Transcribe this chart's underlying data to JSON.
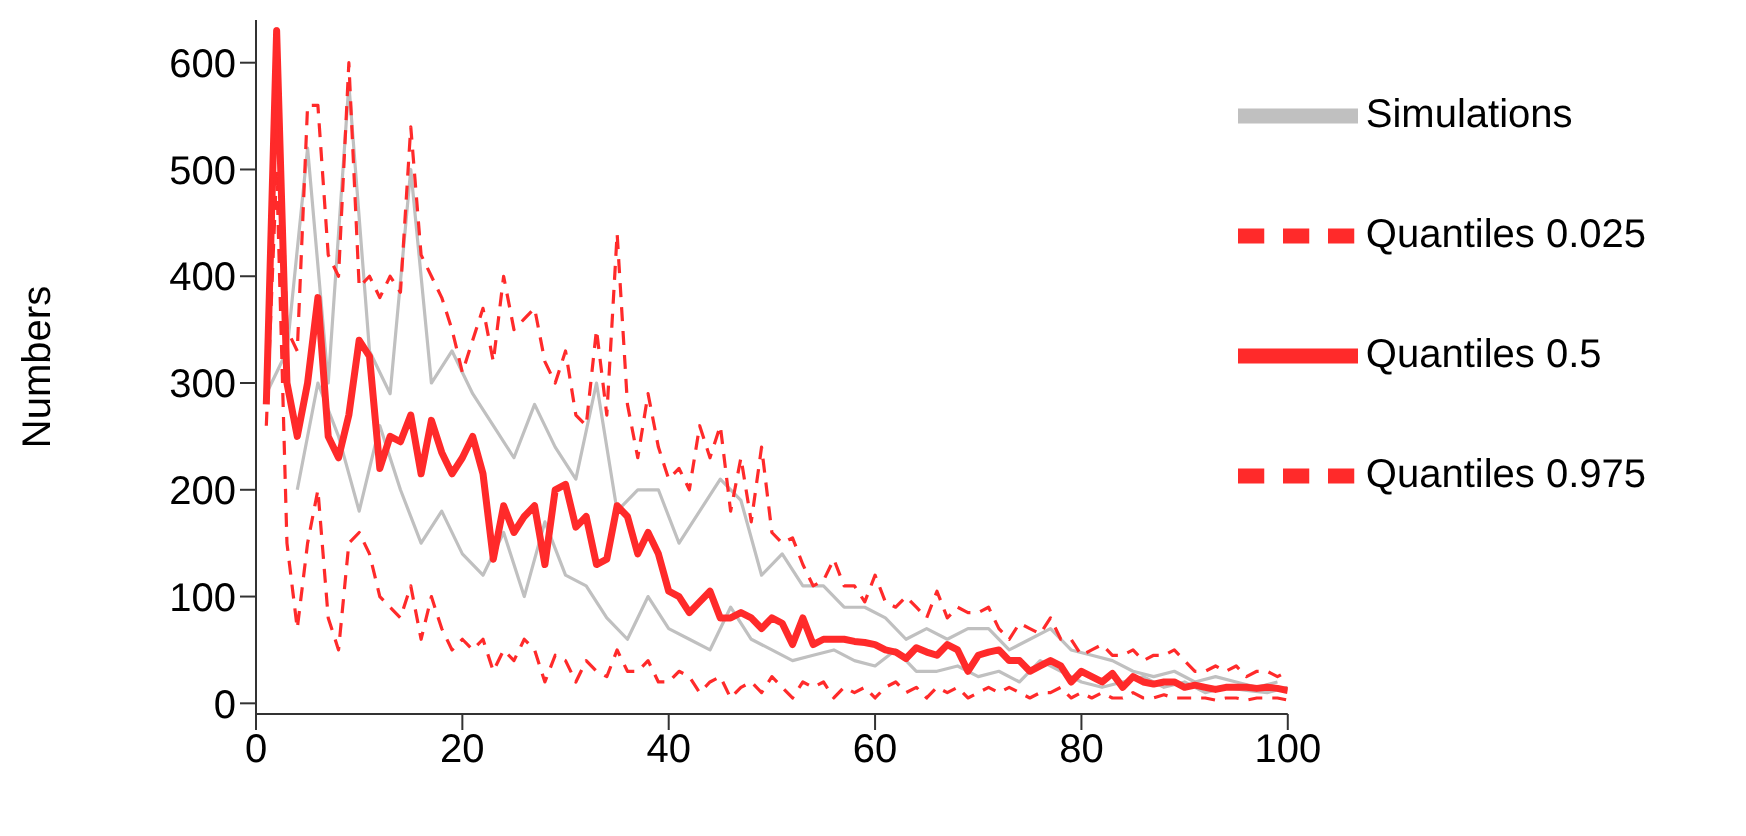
{
  "chart_data": {
    "type": "line",
    "ylabel": "Numbers",
    "xlim": [
      0,
      100
    ],
    "xticks": [
      0,
      20,
      40,
      60,
      80,
      100
    ],
    "ylim": [
      -10,
      640
    ],
    "yticks": [
      0,
      100,
      200,
      300,
      400,
      500,
      600
    ],
    "grid": false,
    "legend": "top right",
    "marker": "none",
    "x": [
      1,
      2,
      3,
      4,
      5,
      6,
      7,
      8,
      9,
      10,
      11,
      12,
      13,
      14,
      15,
      16,
      17,
      18,
      19,
      20,
      21,
      22,
      23,
      24,
      25,
      26,
      27,
      28,
      29,
      30,
      31,
      32,
      33,
      34,
      35,
      36,
      37,
      38,
      39,
      40,
      41,
      42,
      43,
      44,
      45,
      46,
      47,
      48,
      49,
      50,
      51,
      52,
      53,
      54,
      55,
      56,
      57,
      58,
      59,
      60,
      61,
      62,
      63,
      64,
      65,
      66,
      67,
      68,
      69,
      70,
      71,
      72,
      73,
      74,
      75,
      76,
      77,
      78,
      79,
      80,
      81,
      82,
      83,
      84,
      85,
      86,
      87,
      88,
      89,
      90,
      91,
      92,
      93,
      94,
      95,
      96,
      97,
      98,
      99,
      100
    ],
    "series": [
      {
        "name": "Simulations",
        "color": "#c0c0c0",
        "line_style": "solid",
        "x": [
          1,
          3,
          5,
          7,
          9,
          11,
          13,
          15,
          17,
          19,
          21,
          23,
          25,
          27,
          29,
          31,
          33,
          35,
          37,
          39,
          41,
          43,
          45,
          47,
          49,
          51,
          53,
          55,
          57,
          59,
          61,
          63,
          65,
          67,
          69,
          71,
          73,
          75,
          77,
          79,
          81,
          83,
          85,
          87,
          89,
          91,
          93,
          95,
          97,
          99
        ],
        "values": [
          290,
          330,
          520,
          300,
          580,
          330,
          290,
          500,
          300,
          330,
          290,
          260,
          230,
          280,
          240,
          210,
          300,
          180,
          200,
          200,
          150,
          180,
          210,
          190,
          120,
          140,
          110,
          110,
          90,
          90,
          80,
          60,
          70,
          60,
          70,
          70,
          50,
          60,
          70,
          50,
          45,
          40,
          30,
          25,
          30,
          20,
          25,
          20,
          15,
          20
        ]
      },
      {
        "color": "#c0c0c0",
        "line_style": "solid",
        "x": [
          4,
          6,
          8,
          10,
          12,
          14,
          16,
          18,
          20,
          22,
          24,
          26,
          28,
          30,
          32,
          34,
          36,
          38,
          40,
          42,
          44,
          46,
          48,
          50,
          52,
          54,
          56,
          58,
          60,
          62,
          64,
          66,
          68,
          70,
          72,
          74,
          76,
          78,
          80,
          82,
          84,
          86,
          88,
          90,
          92,
          94,
          96,
          98,
          100
        ],
        "values": [
          200,
          300,
          250,
          180,
          260,
          200,
          150,
          180,
          140,
          120,
          160,
          100,
          170,
          120,
          110,
          80,
          60,
          100,
          70,
          60,
          50,
          90,
          60,
          50,
          40,
          45,
          50,
          40,
          35,
          50,
          30,
          30,
          35,
          25,
          30,
          20,
          40,
          30,
          20,
          15,
          20,
          25,
          15,
          20,
          10,
          15,
          12,
          10,
          15
        ]
      },
      {
        "name": "Quantiles 0.025",
        "color": "#ff2a2a",
        "line_style": "dashed",
        "values": [
          260,
          500,
          150,
          70,
          150,
          200,
          80,
          50,
          150,
          160,
          140,
          100,
          90,
          80,
          110,
          60,
          100,
          70,
          50,
          60,
          50,
          60,
          30,
          50,
          40,
          60,
          50,
          20,
          45,
          40,
          20,
          40,
          30,
          25,
          50,
          30,
          30,
          40,
          20,
          20,
          30,
          25,
          10,
          20,
          25,
          5,
          15,
          20,
          10,
          25,
          15,
          5,
          20,
          15,
          20,
          5,
          15,
          10,
          15,
          5,
          15,
          20,
          10,
          15,
          5,
          15,
          10,
          15,
          5,
          10,
          15,
          10,
          15,
          10,
          5,
          10,
          10,
          15,
          5,
          10,
          5,
          10,
          5,
          5,
          10,
          5,
          5,
          8,
          5,
          5,
          5,
          5,
          3,
          5,
          5,
          3,
          5,
          5,
          5,
          3
        ]
      },
      {
        "name": "Quantiles 0.5",
        "color": "#ff2a2a",
        "line_style": "solid",
        "values": [
          280,
          630,
          300,
          250,
          300,
          380,
          250,
          230,
          270,
          340,
          325,
          220,
          250,
          245,
          270,
          215,
          265,
          235,
          215,
          230,
          250,
          215,
          135,
          185,
          160,
          175,
          185,
          130,
          200,
          205,
          165,
          175,
          130,
          135,
          185,
          175,
          140,
          160,
          140,
          105,
          100,
          85,
          95,
          105,
          80,
          80,
          85,
          80,
          70,
          80,
          75,
          55,
          80,
          55,
          60,
          60,
          60,
          58,
          57,
          55,
          50,
          48,
          42,
          52,
          48,
          45,
          55,
          50,
          30,
          45,
          48,
          50,
          40,
          40,
          30,
          35,
          40,
          35,
          20,
          30,
          25,
          20,
          28,
          15,
          25,
          20,
          18,
          20,
          20,
          15,
          17,
          15,
          13,
          15,
          15,
          15,
          14,
          15,
          14,
          12
        ]
      },
      {
        "name": "Quantiles 0.975",
        "color": "#ff2a2a",
        "line_style": "dashed",
        "values": [
          300,
          635,
          350,
          330,
          560,
          560,
          420,
          400,
          600,
          390,
          400,
          380,
          400,
          385,
          540,
          420,
          400,
          380,
          350,
          310,
          340,
          370,
          320,
          400,
          350,
          360,
          370,
          320,
          300,
          330,
          270,
          260,
          350,
          270,
          440,
          280,
          230,
          290,
          240,
          210,
          220,
          200,
          260,
          230,
          260,
          180,
          230,
          170,
          240,
          160,
          150,
          155,
          130,
          110,
          115,
          135,
          110,
          110,
          95,
          120,
          95,
          90,
          100,
          90,
          80,
          105,
          80,
          90,
          85,
          85,
          90,
          70,
          60,
          75,
          70,
          65,
          80,
          60,
          60,
          45,
          50,
          55,
          45,
          45,
          50,
          40,
          45,
          45,
          50,
          40,
          30,
          30,
          35,
          30,
          35,
          25,
          30,
          30,
          25,
          30
        ]
      }
    ]
  }
}
